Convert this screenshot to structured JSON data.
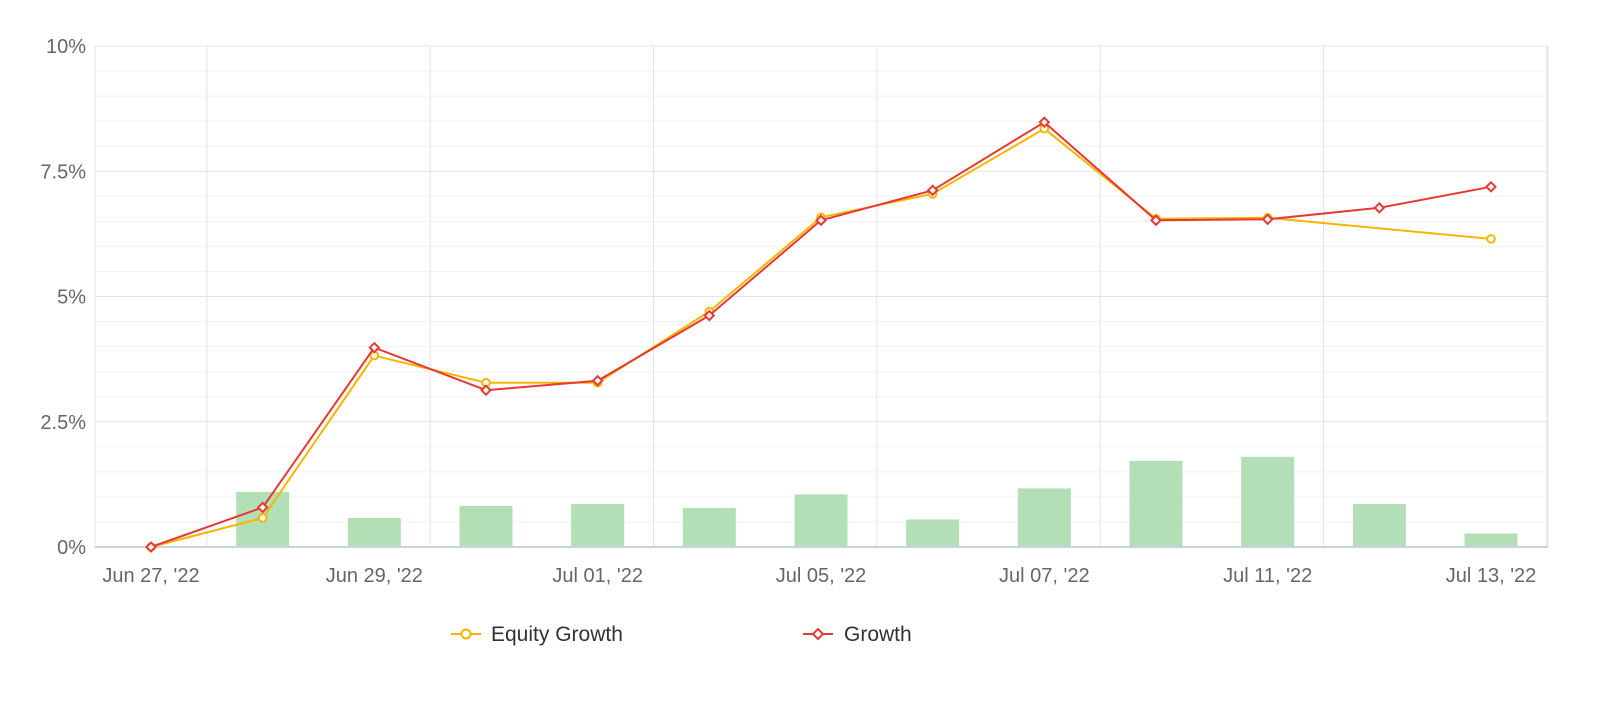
{
  "chart_data": {
    "type": "line",
    "title": "",
    "xlabel": "",
    "ylabel": "",
    "x_tick_labels": [
      "Jun 27, '22",
      "Jun 29, '22",
      "Jul 01, '22",
      "Jul 05, '22",
      "Jul 07, '22",
      "Jul 11, '22",
      "Jul 13, '22"
    ],
    "y_tick_labels": [
      "0%",
      "2.5%",
      "5%",
      "7.5%",
      "10%"
    ],
    "ylim": [
      0,
      10
    ],
    "y_unit": "%",
    "grid": true,
    "legend_position": "bottom-center",
    "point_count": 13,
    "series": [
      {
        "name": "Equity Growth",
        "kind": "line",
        "marker": "circle",
        "color": "#f7b500",
        "values": [
          0.0,
          0.58,
          3.82,
          3.28,
          3.28,
          4.7,
          6.58,
          7.05,
          8.35,
          6.55,
          6.57,
          null,
          6.15
        ]
      },
      {
        "name": "Growth",
        "kind": "line",
        "marker": "diamond",
        "color": "#e53935",
        "values": [
          0.0,
          0.79,
          3.98,
          3.13,
          3.32,
          4.62,
          6.52,
          7.12,
          8.48,
          6.52,
          6.54,
          6.77,
          7.19
        ]
      },
      {
        "name": "",
        "kind": "bar",
        "color": "#b3dfb7",
        "values": [
          null,
          1.1,
          0.58,
          0.82,
          0.86,
          0.78,
          1.05,
          0.55,
          1.17,
          1.72,
          1.8,
          0.86,
          0.27
        ]
      }
    ]
  },
  "legend": {
    "items": [
      {
        "label": "Equity Growth",
        "icon": "circle-line-icon",
        "color": "#f7b500"
      },
      {
        "label": "Growth",
        "icon": "diamond-line-icon",
        "color": "#e53935"
      }
    ]
  }
}
